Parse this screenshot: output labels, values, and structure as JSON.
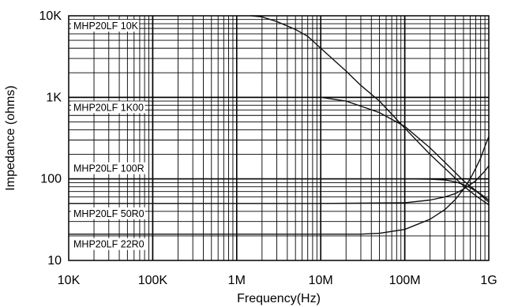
{
  "chart_data": {
    "type": "line",
    "title": "",
    "xlabel": "Frequency(Hz)",
    "ylabel": "Impedance (ohms)",
    "x_scale": "log",
    "y_scale": "log",
    "xlim": [
      10000,
      1000000000
    ],
    "ylim": [
      10,
      10000
    ],
    "grid": true,
    "x_tick_labels": [
      "10K",
      "100K",
      "1M",
      "10M",
      "100M",
      "1G"
    ],
    "y_tick_labels": [
      "10",
      "100",
      "1K",
      "10K"
    ],
    "series": [
      {
        "name": "MHP20LF 10K",
        "x": [
          1500000,
          2000000,
          3000000,
          5000000,
          7000000,
          10000000,
          20000000,
          30000000,
          50000000,
          100000000,
          200000000,
          300000000,
          500000000,
          700000000,
          1000000000
        ],
        "y": [
          10000,
          9700,
          8500,
          6800,
          5600,
          4000,
          2100,
          1400,
          900,
          420,
          200,
          135,
          82,
          62,
          48
        ]
      },
      {
        "name": "MHP20LF 1K00",
        "x": [
          10000000,
          20000000,
          30000000,
          50000000,
          100000000,
          200000000,
          300000000,
          500000000,
          700000000,
          1000000000
        ],
        "y": [
          1000,
          900,
          780,
          650,
          440,
          240,
          160,
          95,
          72,
          55
        ]
      },
      {
        "name": "MHP20LF 100R",
        "x": [
          10000,
          100000,
          1000000,
          10000000,
          100000000,
          200000000,
          300000000,
          400000000,
          500000000,
          600000000,
          700000000,
          800000000,
          900000000,
          1000000000
        ],
        "y": [
          100,
          100,
          100,
          100,
          100,
          99,
          97,
          92,
          85,
          78,
          71,
          64,
          57,
          52
        ]
      },
      {
        "name": "MHP20LF 50R0",
        "x": [
          10000,
          100000,
          1000000,
          10000000,
          100000000,
          200000000,
          300000000,
          400000000,
          500000000,
          600000000,
          700000000,
          800000000,
          900000000,
          1000000000
        ],
        "y": [
          50,
          50,
          50,
          50,
          51,
          55,
          60,
          66,
          75,
          85,
          95,
          110,
          125,
          145
        ]
      },
      {
        "name": "MHP20LF 22R0",
        "x": [
          10000,
          100000,
          1000000,
          10000000,
          30000000,
          50000000,
          100000000,
          200000000,
          300000000,
          400000000,
          500000000,
          600000000,
          700000000,
          800000000,
          900000000,
          1000000000
        ],
        "y": [
          21,
          21,
          21,
          21,
          21,
          21.5,
          24,
          32,
          42,
          56,
          75,
          100,
          135,
          180,
          250,
          330
        ]
      }
    ]
  }
}
